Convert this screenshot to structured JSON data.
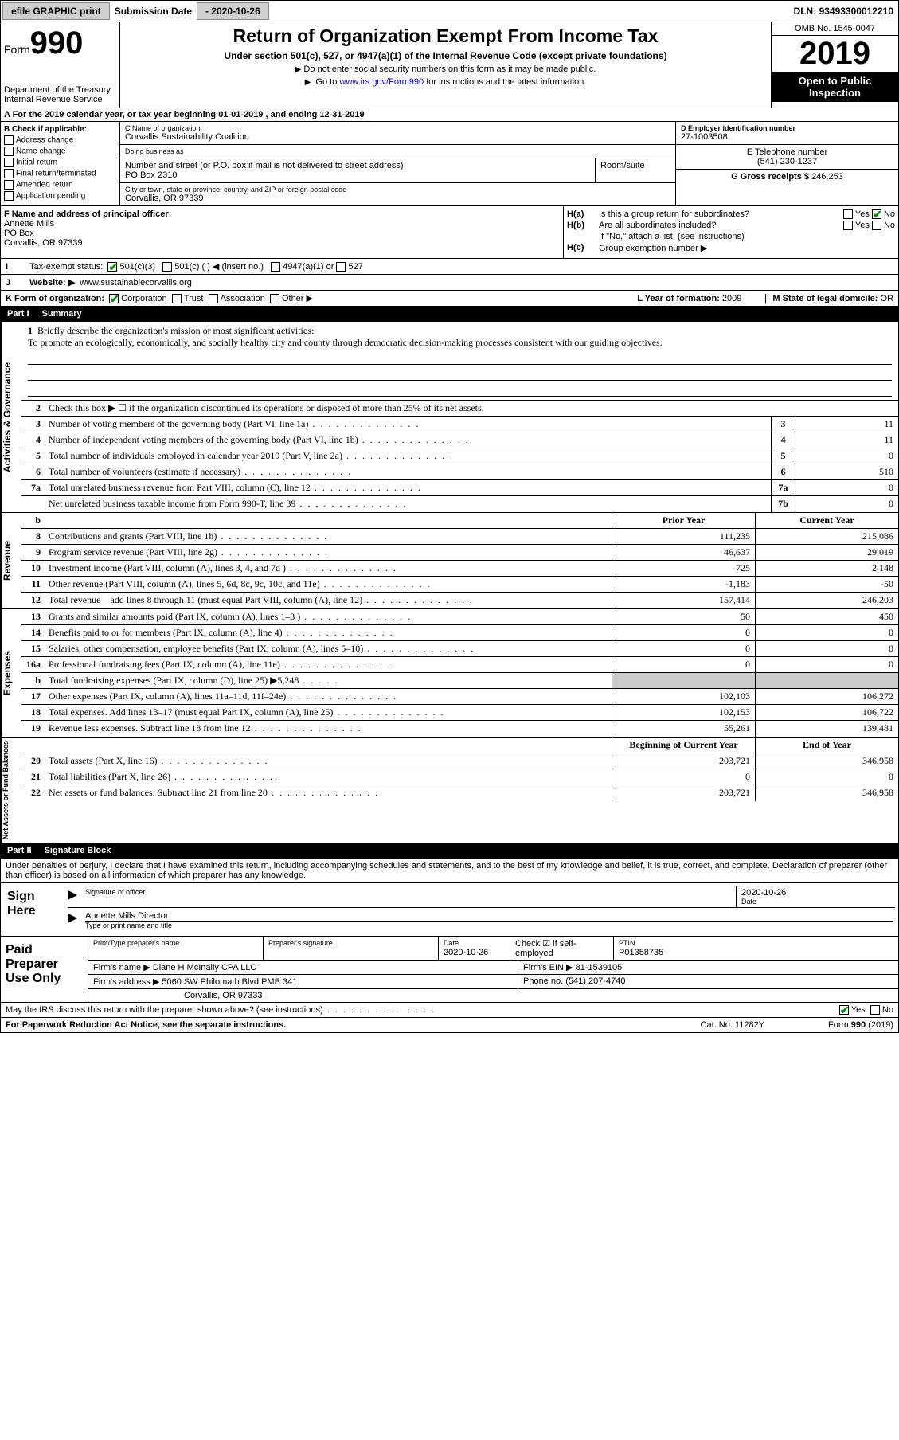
{
  "topbar": {
    "efile": "efile GRAPHIC print",
    "sub_label": "Submission Date",
    "sub_date": "- 2020-10-26",
    "dln_label": "DLN:",
    "dln": "93493300012210"
  },
  "header": {
    "form_word": "Form",
    "form_num": "990",
    "dept": "Department of the Treasury\nInternal Revenue Service",
    "title": "Return of Organization Exempt From Income Tax",
    "sub": "Under section 501(c), 527, or 4947(a)(1) of the Internal Revenue Code (except private foundations)",
    "note1": "Do not enter social security numbers on this form as it may be made public.",
    "note2_pre": "Go to ",
    "note2_link": "www.irs.gov/Form990",
    "note2_post": " for instructions and the latest information.",
    "omb": "OMB No. 1545-0047",
    "year": "2019",
    "inspect": "Open to Public Inspection"
  },
  "rowA": "A For the 2019 calendar year, or tax year beginning 01-01-2019   , and ending 12-31-2019",
  "colB": {
    "hdr": "B Check if applicable:",
    "items": [
      "Address change",
      "Name change",
      "Initial return",
      "Final return/terminated",
      "Amended return",
      "Application pending"
    ]
  },
  "colC": {
    "name_lbl": "C Name of organization",
    "name": "Corvallis Sustainability Coalition",
    "dba_lbl": "Doing business as",
    "dba": "",
    "addr_lbl": "Number and street (or P.O. box if mail is not delivered to street address)",
    "room_lbl": "Room/suite",
    "addr": "PO Box 2310",
    "city_lbl": "City or town, state or province, country, and ZIP or foreign postal code",
    "city": "Corvallis, OR  97339"
  },
  "colDE": {
    "d_lbl": "D Employer identification number",
    "d_val": "27-1003508",
    "e_lbl": "E Telephone number",
    "e_val": "(541) 230-1237",
    "g_lbl": "G Gross receipts $",
    "g_val": "246,253"
  },
  "rowF": {
    "lbl": "F  Name and address of principal officer:",
    "name": "Annette Mills",
    "addr1": "PO Box",
    "addr2": "Corvallis, OR  97339"
  },
  "rowH": {
    "a_lbl": "H(a)",
    "a_txt": "Is this a group return for subordinates?",
    "a_yes": "Yes",
    "a_no": "No",
    "b_lbl": "H(b)",
    "b_txt": "Are all subordinates included?",
    "b_yes": "Yes",
    "b_no": "No",
    "b_note": "If \"No,\" attach a list. (see instructions)",
    "c_lbl": "H(c)",
    "c_txt": "Group exemption number ▶"
  },
  "rowI": {
    "lbl": "Tax-exempt status:",
    "opts": [
      "501(c)(3)",
      "501(c) (  ) ◀ (insert no.)",
      "4947(a)(1) or",
      "527"
    ]
  },
  "rowJ": {
    "lbl": "J",
    "txt": "Website: ▶",
    "val": "www.sustainablecorvallis.org"
  },
  "rowK": {
    "lbl": "K Form of organization:",
    "opts": [
      "Corporation",
      "Trust",
      "Association",
      "Other ▶"
    ],
    "l_lbl": "L Year of formation:",
    "l_val": "2009",
    "m_lbl": "M State of legal domicile:",
    "m_val": "OR"
  },
  "part1": {
    "num": "Part I",
    "title": "Summary"
  },
  "sections": {
    "ag": "Activities & Governance",
    "rev": "Revenue",
    "exp": "Expenses",
    "na": "Net Assets or Fund Balances"
  },
  "mission": {
    "lbl": "1",
    "txt": "Briefly describe the organization's mission or most significant activities:",
    "val": "To promote an ecologically, economically, and socially healthy city and county through democratic decision-making processes consistent with our guiding objectives."
  },
  "line2": "Check this box ▶ ☐  if the organization discontinued its operations or disposed of more than 25% of its net assets.",
  "lines_ag": [
    {
      "n": "3",
      "d": "Number of voting members of the governing body (Part VI, line 1a)",
      "b": "3",
      "v": "11"
    },
    {
      "n": "4",
      "d": "Number of independent voting members of the governing body (Part VI, line 1b)",
      "b": "4",
      "v": "11"
    },
    {
      "n": "5",
      "d": "Total number of individuals employed in calendar year 2019 (Part V, line 2a)",
      "b": "5",
      "v": "0"
    },
    {
      "n": "6",
      "d": "Total number of volunteers (estimate if necessary)",
      "b": "6",
      "v": "510"
    },
    {
      "n": "7a",
      "d": "Total unrelated business revenue from Part VIII, column (C), line 12",
      "b": "7a",
      "v": "0"
    },
    {
      "n": "",
      "d": "Net unrelated business taxable income from Form 990-T, line 39",
      "b": "7b",
      "v": "0"
    }
  ],
  "col_hdrs": {
    "b": "b",
    "py": "Prior Year",
    "cy": "Current Year"
  },
  "lines_rev": [
    {
      "n": "8",
      "d": "Contributions and grants (Part VIII, line 1h)",
      "py": "111,235",
      "cy": "215,086"
    },
    {
      "n": "9",
      "d": "Program service revenue (Part VIII, line 2g)",
      "py": "46,637",
      "cy": "29,019"
    },
    {
      "n": "10",
      "d": "Investment income (Part VIII, column (A), lines 3, 4, and 7d )",
      "py": "725",
      "cy": "2,148"
    },
    {
      "n": "11",
      "d": "Other revenue (Part VIII, column (A), lines 5, 6d, 8c, 9c, 10c, and 11e)",
      "py": "-1,183",
      "cy": "-50"
    },
    {
      "n": "12",
      "d": "Total revenue—add lines 8 through 11 (must equal Part VIII, column (A), line 12)",
      "py": "157,414",
      "cy": "246,203"
    }
  ],
  "lines_exp": [
    {
      "n": "13",
      "d": "Grants and similar amounts paid (Part IX, column (A), lines 1–3 )",
      "py": "50",
      "cy": "450"
    },
    {
      "n": "14",
      "d": "Benefits paid to or for members (Part IX, column (A), line 4)",
      "py": "0",
      "cy": "0"
    },
    {
      "n": "15",
      "d": "Salaries, other compensation, employee benefits (Part IX, column (A), lines 5–10)",
      "py": "0",
      "cy": "0"
    },
    {
      "n": "16a",
      "d": "Professional fundraising fees (Part IX, column (A), line 11e)",
      "py": "0",
      "cy": "0"
    },
    {
      "n": "b",
      "d": "Total fundraising expenses (Part IX, column (D), line 25) ▶5,248",
      "py": "",
      "cy": "",
      "grey": true
    },
    {
      "n": "17",
      "d": "Other expenses (Part IX, column (A), lines 11a–11d, 11f–24e)",
      "py": "102,103",
      "cy": "106,272"
    },
    {
      "n": "18",
      "d": "Total expenses. Add lines 13–17 (must equal Part IX, column (A), line 25)",
      "py": "102,153",
      "cy": "106,722"
    },
    {
      "n": "19",
      "d": "Revenue less expenses. Subtract line 18 from line 12",
      "py": "55,261",
      "cy": "139,481"
    }
  ],
  "col_hdrs2": {
    "py": "Beginning of Current Year",
    "cy": "End of Year"
  },
  "lines_na": [
    {
      "n": "20",
      "d": "Total assets (Part X, line 16)",
      "py": "203,721",
      "cy": "346,958"
    },
    {
      "n": "21",
      "d": "Total liabilities (Part X, line 26)",
      "py": "0",
      "cy": "0"
    },
    {
      "n": "22",
      "d": "Net assets or fund balances. Subtract line 21 from line 20",
      "py": "203,721",
      "cy": "346,958"
    }
  ],
  "part2": {
    "num": "Part II",
    "title": "Signature Block"
  },
  "sig": {
    "decl": "Under penalties of perjury, I declare that I have examined this return, including accompanying schedules and statements, and to the best of my knowledge and belief, it is true, correct, and complete. Declaration of preparer (other than officer) is based on all information of which preparer has any knowledge.",
    "here": "Sign Here",
    "sig_lbl": "Signature of officer",
    "date_lbl": "Date",
    "date": "2020-10-26",
    "name": "Annette Mills  Director",
    "name_lbl": "Type or print name and title"
  },
  "prep": {
    "left": "Paid Preparer Use Only",
    "r1": {
      "c1": "Print/Type preparer's name",
      "c2": "Preparer's signature",
      "c3": "Date",
      "c3v": "2020-10-26",
      "c4": "Check ☑ if self-employed",
      "c5": "PTIN",
      "c5v": "P01358735"
    },
    "r2": {
      "lbl": "Firm's name    ▶",
      "val": "Diane H McInally CPA LLC",
      "ein_lbl": "Firm's EIN ▶",
      "ein": "81-1539105"
    },
    "r3": {
      "lbl": "Firm's address ▶",
      "val": "5060 SW Philomath Blvd PMB 341",
      "ph_lbl": "Phone no.",
      "ph": "(541) 207-4740"
    },
    "r3b": "Corvallis, OR  97333"
  },
  "discuss": {
    "txt": "May the IRS discuss this return with the preparer shown above? (see instructions)",
    "yes": "Yes",
    "no": "No"
  },
  "footer": {
    "l": "For Paperwork Reduction Act Notice, see the separate instructions.",
    "m": "Cat. No. 11282Y",
    "r": "Form 990 (2019)"
  }
}
